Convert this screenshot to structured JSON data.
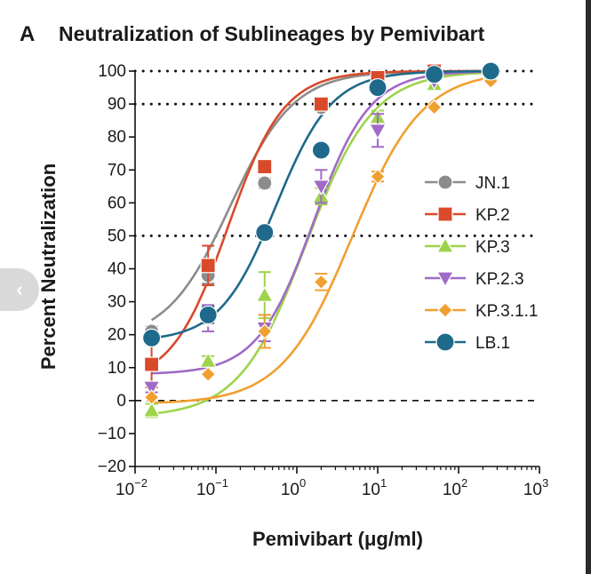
{
  "panel_letter": "A",
  "colors": {
    "JN.1": "#8c8c8c",
    "KP.2": "#d94a2b",
    "KP.3": "#9dd44a",
    "KP.2.3": "#a06ac7",
    "KP.3.1.1": "#f0a030",
    "LB.1": "#1f6a8a"
  },
  "nav": {
    "icon": "chevron-left-icon",
    "glyph": "‹"
  },
  "chart_data": {
    "type": "line",
    "title": "Neutralization of Sublineages by Pemivibart",
    "xlabel": "Pemivibart (μg/ml)",
    "ylabel": "Percent Neutralization",
    "xscale": "log",
    "xlim": [
      0.01,
      1000
    ],
    "ylim": [
      -20,
      100
    ],
    "x_ticks": [
      {
        "base": "10",
        "exp": "−2",
        "value": 0.01
      },
      {
        "base": "10",
        "exp": "−1",
        "value": 0.1
      },
      {
        "base": "10",
        "exp": "0",
        "value": 1
      },
      {
        "base": "10",
        "exp": "1",
        "value": 10
      },
      {
        "base": "10",
        "exp": "2",
        "value": 100
      },
      {
        "base": "10",
        "exp": "3",
        "value": 1000
      }
    ],
    "y_ticks": [
      "100",
      "90",
      "80",
      "70",
      "60",
      "50",
      "40",
      "30",
      "20",
      "10",
      "0",
      "−10",
      "−20"
    ],
    "y_tick_values": [
      100,
      90,
      80,
      70,
      60,
      50,
      40,
      30,
      20,
      10,
      0,
      -10,
      -20
    ],
    "reference_lines": [
      {
        "y": 100,
        "style": "dotted"
      },
      {
        "y": 90,
        "style": "dotted"
      },
      {
        "y": 50,
        "style": "dotted"
      },
      {
        "y": 0,
        "style": "dashed"
      }
    ],
    "legend_position": "right",
    "x": [
      0.016,
      0.08,
      0.4,
      2,
      10,
      50,
      250
    ],
    "series": [
      {
        "name": "JN.1",
        "marker": "circle",
        "values": [
          21,
          38,
          66,
          89,
          98,
          100,
          100
        ],
        "errors": [
          1.5,
          2.5,
          1.5,
          1,
          1,
          0.5,
          0.5
        ],
        "curve": {
          "bottom": 18,
          "top": 100,
          "ec50": 0.15,
          "hill": 1.1
        }
      },
      {
        "name": "KP.2",
        "marker": "square",
        "values": [
          11,
          41,
          71,
          90,
          98,
          100,
          100
        ],
        "errors": [
          7,
          6,
          1.5,
          1,
          1,
          0.5,
          0.5
        ],
        "curve": {
          "bottom": 5,
          "top": 100,
          "ec50": 0.14,
          "hill": 1.25
        }
      },
      {
        "name": "KP.3",
        "marker": "triangle-up",
        "values": [
          -3,
          12,
          32,
          62,
          86,
          96,
          99
        ],
        "errors": [
          2,
          1.5,
          7,
          2.5,
          2,
          1,
          0.5
        ],
        "curve": {
          "bottom": -5,
          "top": 100,
          "ec50": 1.3,
          "hill": 1.05
        }
      },
      {
        "name": "KP.2.3",
        "marker": "triangle-down",
        "values": [
          4,
          25,
          22,
          65,
          82,
          97,
          99
        ],
        "errors": [
          1.5,
          4,
          4,
          5,
          5,
          1,
          0.5
        ],
        "curve": {
          "bottom": 8,
          "top": 100,
          "ec50": 1.6,
          "hill": 1.25
        }
      },
      {
        "name": "KP.3.1.1",
        "marker": "diamond",
        "values": [
          1,
          8,
          21,
          36,
          68,
          89,
          97
        ],
        "errors": [
          1,
          1,
          5,
          2.5,
          1.5,
          1,
          1
        ],
        "curve": {
          "bottom": -1,
          "top": 100,
          "ec50": 4.8,
          "hill": 1.0
        }
      },
      {
        "name": "LB.1",
        "marker": "circle",
        "values": [
          19,
          26,
          51,
          76,
          95,
          99,
          100
        ],
        "errors": [
          2,
          2.5,
          1.5,
          1.5,
          1,
          0.5,
          0.5
        ],
        "curve": {
          "bottom": 18,
          "top": 100,
          "ec50": 0.55,
          "hill": 1.25
        }
      }
    ]
  }
}
